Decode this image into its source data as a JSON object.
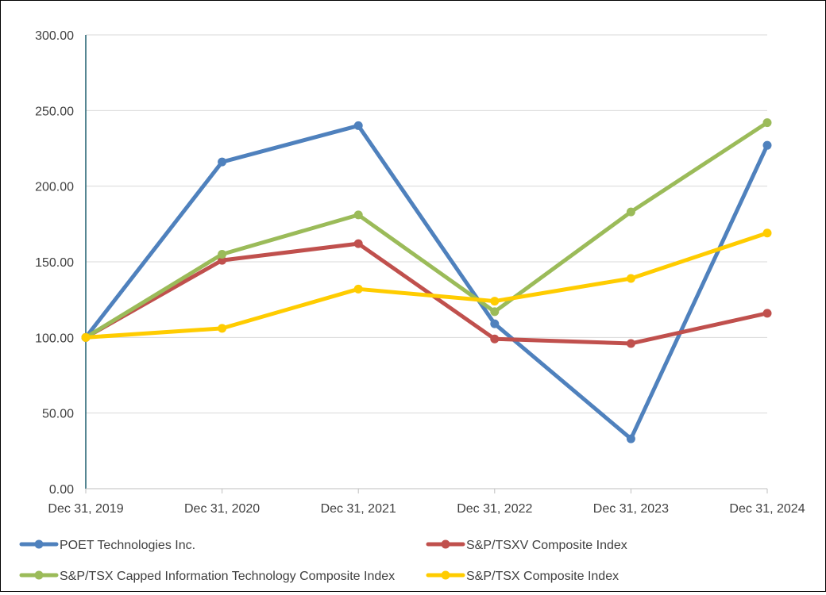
{
  "chart_data": {
    "type": "line",
    "title": "",
    "xlabel": "",
    "ylabel": "",
    "categories": [
      "Dec 31, 2019",
      "Dec 31, 2020",
      "Dec 31, 2021",
      "Dec 31, 2022",
      "Dec 31, 2023",
      "Dec 31, 2024"
    ],
    "ylim": [
      0,
      300
    ],
    "yticks": [
      "0.00",
      "50.00",
      "100.00",
      "150.00",
      "200.00",
      "250.00",
      "300.00"
    ],
    "grid": true,
    "legend_position": "bottom",
    "series": [
      {
        "name": "POET Technologies Inc.",
        "color": "#4F81BD",
        "values": [
          100,
          216,
          240,
          109,
          33,
          227
        ]
      },
      {
        "name": "S&P/TSXV Composite Index",
        "color": "#C0504D",
        "values": [
          100,
          151,
          162,
          99,
          96,
          116
        ]
      },
      {
        "name": "S&P/TSX Capped Information Technology Composite Index",
        "color": "#9BBB59",
        "values": [
          100,
          155,
          181,
          117,
          183,
          242
        ]
      },
      {
        "name": "S&P/TSX Composite Index",
        "color": "#FFCC00",
        "values": [
          100,
          106,
          132,
          124,
          139,
          169
        ]
      }
    ]
  }
}
